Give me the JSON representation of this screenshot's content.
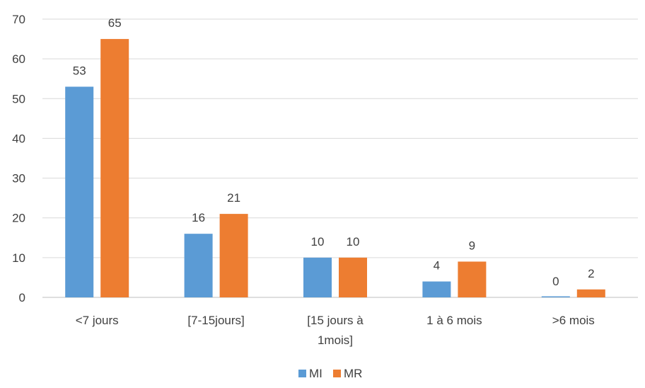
{
  "chart_data": {
    "type": "bar",
    "title": "",
    "xlabel": "",
    "ylabel": "",
    "categories": [
      [
        "<7 jours"
      ],
      [
        "[7-15jours]"
      ],
      [
        "[15 jours à",
        "1mois]"
      ],
      [
        "1 à 6 mois"
      ],
      [
        ">6 mois"
      ]
    ],
    "series": [
      {
        "name": "MI",
        "color": "#5b9bd5",
        "values": [
          53,
          16,
          10,
          4,
          0
        ]
      },
      {
        "name": "MR",
        "color": "#ed7d31",
        "values": [
          65,
          21,
          10,
          9,
          2
        ]
      }
    ],
    "ylim": [
      0,
      70
    ],
    "yticks": [
      0,
      10,
      20,
      30,
      40,
      50,
      60,
      70
    ],
    "grid": true,
    "legend_position": "bottom"
  }
}
